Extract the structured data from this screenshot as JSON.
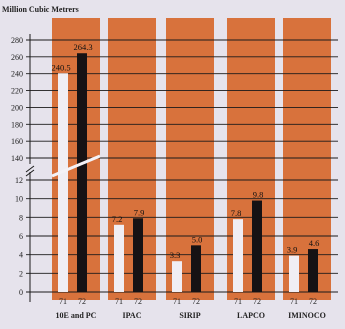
{
  "chart_data": {
    "type": "bar",
    "unit_label": "Million Cubic Metrers",
    "categories": [
      "10E and PC",
      "IPAC",
      "SIRIP",
      "LAPCO",
      "IMINOCO"
    ],
    "x_sublabels": [
      "71",
      "72"
    ],
    "series": [
      {
        "values": [
          240.5,
          7.2,
          3.3,
          7.8,
          3.9
        ]
      },
      {
        "values": [
          264.3,
          7.9,
          5.0,
          9.8,
          4.6
        ]
      }
    ],
    "value_labels": [
      [
        "240.5",
        "264.3"
      ],
      [
        "7.2",
        "7.9"
      ],
      [
        "3.3",
        "5.0"
      ],
      [
        "7.8",
        "9.8"
      ],
      [
        "3.9",
        "4.6"
      ]
    ],
    "y_ticks_lower": [
      0,
      2,
      4,
      6,
      8,
      10,
      12
    ],
    "y_ticks_upper": [
      140,
      160,
      180,
      200,
      220,
      240,
      260,
      280
    ],
    "y_axis_break": true,
    "colors": {
      "background": "#e6e3ec",
      "panel": "#d8723c",
      "bar_71": "#f0eef4",
      "bar_72": "#161214",
      "axis": "#1a1a1a"
    }
  }
}
